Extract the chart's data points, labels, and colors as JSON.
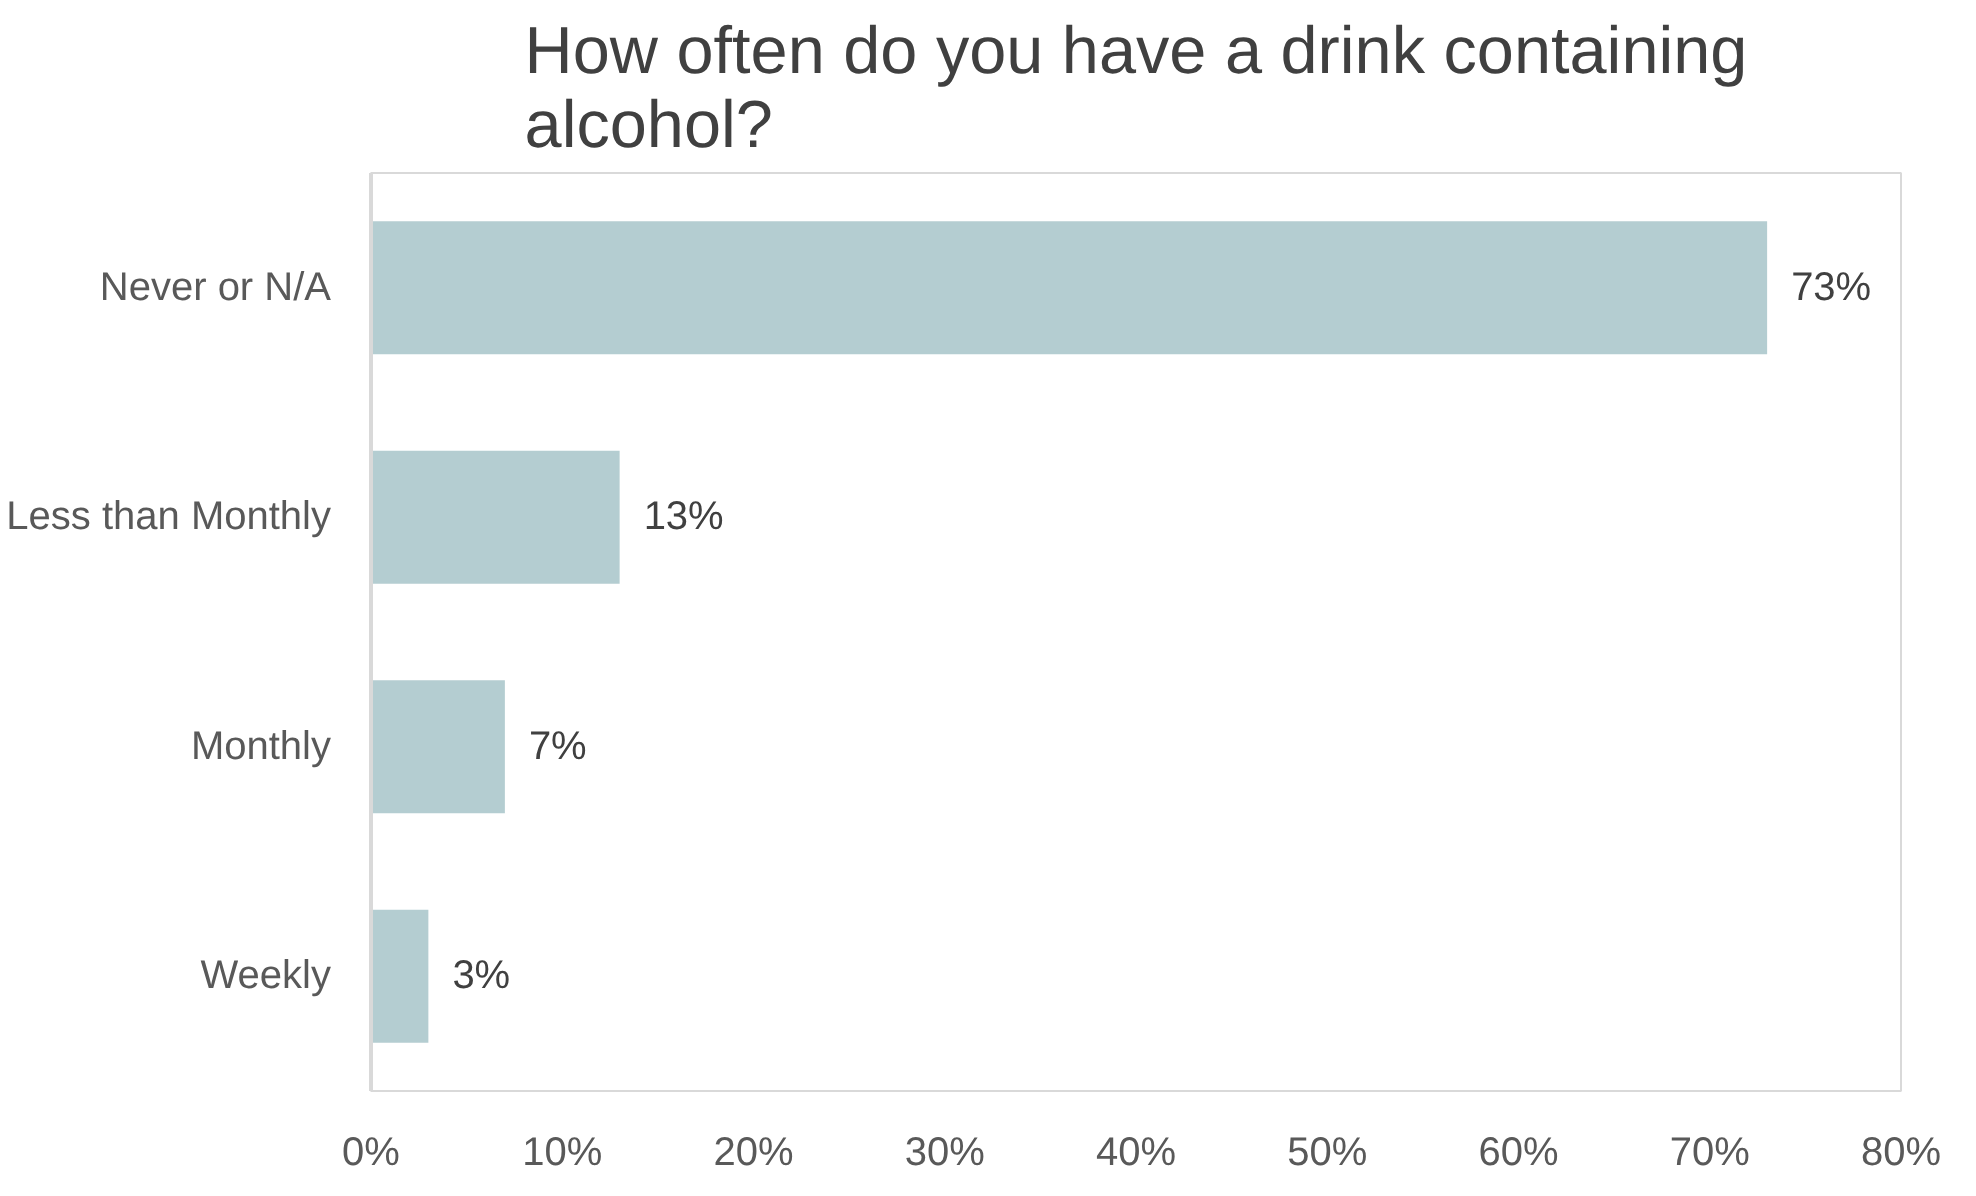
{
  "chart_data": {
    "type": "bar",
    "orientation": "horizontal",
    "title": "How often do you have a drink containing alcohol?",
    "categories": [
      "Never or N/A",
      "Less than Monthly",
      "Monthly",
      "Weekly"
    ],
    "values": [
      73,
      13,
      7,
      3
    ],
    "value_labels": [
      "73%",
      "13%",
      "7%",
      "3%"
    ],
    "color": "#b4cdd1",
    "xlim": [
      0,
      80
    ],
    "xticks": [
      {
        "value": 0,
        "label": "0%"
      },
      {
        "value": 10,
        "label": "10%"
      },
      {
        "value": 20,
        "label": "20%"
      },
      {
        "value": 30,
        "label": "30%"
      },
      {
        "value": 40,
        "label": "40%"
      },
      {
        "value": 50,
        "label": "50%"
      },
      {
        "value": 60,
        "label": "60%"
      },
      {
        "value": 70,
        "label": "70%"
      },
      {
        "value": 80,
        "label": "80%"
      }
    ],
    "grid": false
  }
}
